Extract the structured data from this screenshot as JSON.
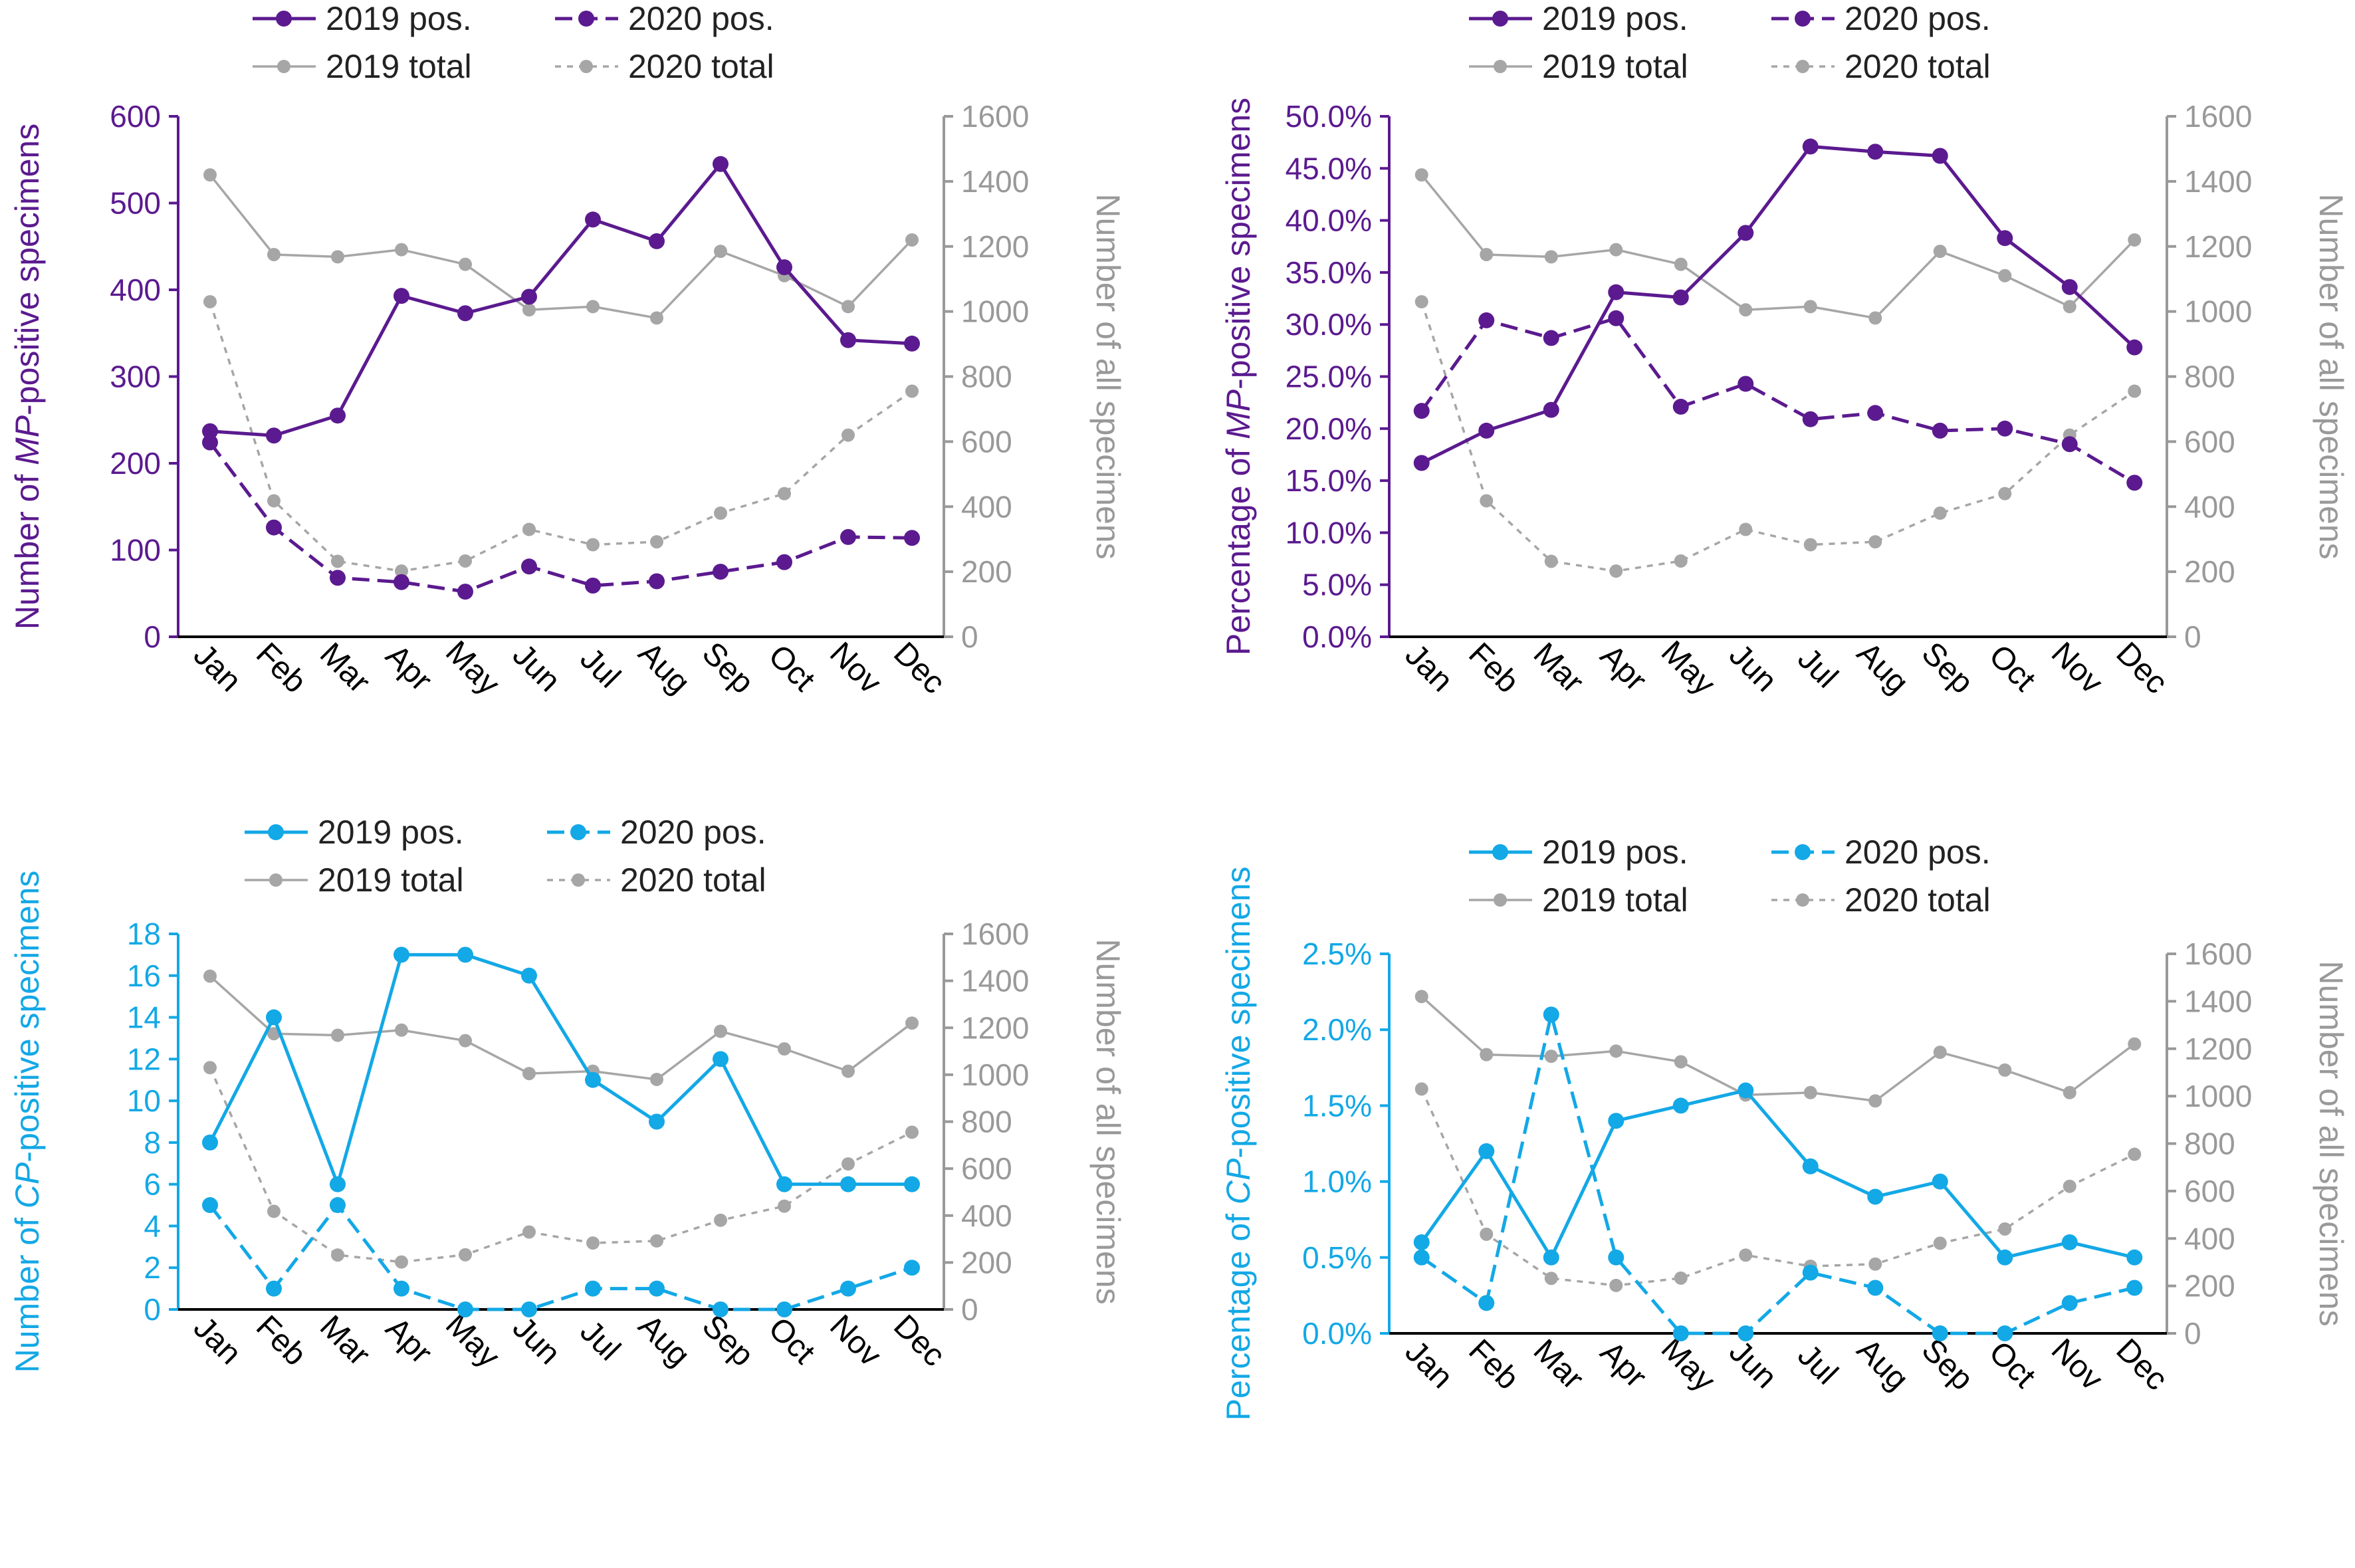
{
  "colors": {
    "mp": "#5B1A8F",
    "cp": "#13A8E6",
    "total": "#A6A6A6",
    "axis_right": "#999999"
  },
  "chart_data": [
    {
      "id": "mp-count",
      "type": "line",
      "title": "",
      "months": [
        "Jan",
        "Feb",
        "Mar",
        "Apr",
        "May",
        "Jun",
        "Jul",
        "Aug",
        "Sep",
        "Oct",
        "Nov",
        "Dec"
      ],
      "ylabel_left_parts": [
        "Number of ",
        "MP",
        "-positive specimens"
      ],
      "ylabel_right": "Number of all specimens",
      "left_ticks": [
        "0",
        "100",
        "200",
        "300",
        "400",
        "500",
        "600"
      ],
      "left_range": [
        0,
        600
      ],
      "right_ticks": [
        "0",
        "200",
        "400",
        "600",
        "800",
        "1000",
        "1200",
        "1400",
        "1600"
      ],
      "right_range": [
        0,
        1600
      ],
      "legend": [
        "2019 pos.",
        "2020 pos.",
        "2019 total",
        "2020 total"
      ],
      "series": [
        {
          "name": "2019 pos.",
          "axis": "left",
          "style": "solid",
          "color_key": "mp",
          "values": [
            237,
            232,
            255,
            393,
            373,
            392,
            481,
            456,
            545,
            426,
            342,
            338
          ]
        },
        {
          "name": "2020 pos.",
          "axis": "left",
          "style": "dashed",
          "color_key": "mp",
          "values": [
            224,
            126,
            68,
            63,
            52,
            81,
            59,
            64,
            75,
            86,
            115,
            114
          ]
        },
        {
          "name": "2019 total",
          "axis": "right",
          "style": "solid",
          "color_key": "total",
          "values": [
            1420,
            1175,
            1168,
            1190,
            1145,
            1005,
            1015,
            980,
            1185,
            1110,
            1015,
            1220
          ]
        },
        {
          "name": "2020 total",
          "axis": "right",
          "style": "dotted",
          "color_key": "total",
          "values": [
            1030,
            418,
            232,
            202,
            233,
            330,
            283,
            292,
            380,
            440,
            620,
            755
          ]
        }
      ]
    },
    {
      "id": "mp-percent",
      "type": "line",
      "title": "",
      "months": [
        "Jan",
        "Feb",
        "Mar",
        "Apr",
        "May",
        "Jun",
        "Jul",
        "Aug",
        "Sep",
        "Oct",
        "Nov",
        "Dec"
      ],
      "ylabel_left_parts": [
        "Percentage of ",
        "MP",
        "-positive specimens"
      ],
      "ylabel_right": "Number of all specimens",
      "left_ticks": [
        "0.0%",
        "5.0%",
        "10.0%",
        "15.0%",
        "20.0%",
        "25.0%",
        "30.0%",
        "35.0%",
        "40.0%",
        "45.0%",
        "50.0%"
      ],
      "left_range": [
        0,
        50
      ],
      "right_ticks": [
        "0",
        "200",
        "400",
        "600",
        "800",
        "1000",
        "1200",
        "1400",
        "1600"
      ],
      "right_range": [
        0,
        1600
      ],
      "legend": [
        "2019 pos.",
        "2020 pos.",
        "2019 total",
        "2020 total"
      ],
      "series": [
        {
          "name": "2019 pos.",
          "axis": "left",
          "style": "solid",
          "color_key": "mp",
          "values": [
            16.7,
            19.8,
            21.8,
            33.1,
            32.6,
            38.8,
            47.1,
            46.6,
            46.2,
            38.3,
            33.6,
            27.8
          ]
        },
        {
          "name": "2020 pos.",
          "axis": "left",
          "style": "dashed",
          "color_key": "mp",
          "values": [
            21.7,
            30.4,
            28.7,
            30.6,
            22.1,
            24.3,
            20.9,
            21.5,
            19.8,
            20.0,
            18.5,
            14.8
          ]
        },
        {
          "name": "2019 total",
          "axis": "right",
          "style": "solid",
          "color_key": "total",
          "values": [
            1420,
            1175,
            1168,
            1190,
            1145,
            1005,
            1015,
            980,
            1185,
            1110,
            1015,
            1220
          ]
        },
        {
          "name": "2020 total",
          "axis": "right",
          "style": "dotted",
          "color_key": "total",
          "values": [
            1030,
            418,
            232,
            202,
            233,
            330,
            283,
            292,
            380,
            440,
            620,
            755
          ]
        }
      ]
    },
    {
      "id": "cp-count",
      "type": "line",
      "title": "",
      "months": [
        "Jan",
        "Feb",
        "Mar",
        "Apr",
        "May",
        "Jun",
        "Jul",
        "Aug",
        "Sep",
        "Oct",
        "Nov",
        "Dec"
      ],
      "ylabel_left_parts": [
        "Number of ",
        "CP",
        "-positive specimens"
      ],
      "ylabel_right": "Number of all specimens",
      "left_ticks": [
        "0",
        "2",
        "4",
        "6",
        "8",
        "10",
        "12",
        "14",
        "16",
        "18"
      ],
      "left_range": [
        0,
        18
      ],
      "right_ticks": [
        "0",
        "200",
        "400",
        "600",
        "800",
        "1000",
        "1200",
        "1400",
        "1600"
      ],
      "right_range": [
        0,
        1600
      ],
      "legend": [
        "2019 pos.",
        "2020 pos.",
        "2019 total",
        "2020 total"
      ],
      "series": [
        {
          "name": "2019 pos.",
          "axis": "left",
          "style": "solid",
          "color_key": "cp",
          "values": [
            8,
            14,
            6,
            17,
            17,
            16,
            11,
            9,
            12,
            6,
            6,
            6
          ]
        },
        {
          "name": "2020 pos.",
          "axis": "left",
          "style": "dashed",
          "color_key": "cp",
          "values": [
            5,
            1,
            5,
            1,
            0,
            0,
            1,
            1,
            0,
            0,
            1,
            2
          ]
        },
        {
          "name": "2019 total",
          "axis": "right",
          "style": "solid",
          "color_key": "total",
          "values": [
            1420,
            1175,
            1168,
            1190,
            1145,
            1005,
            1015,
            980,
            1185,
            1110,
            1015,
            1220
          ]
        },
        {
          "name": "2020 total",
          "axis": "right",
          "style": "dotted",
          "color_key": "total",
          "values": [
            1030,
            418,
            232,
            202,
            233,
            330,
            283,
            292,
            380,
            440,
            620,
            755
          ]
        }
      ]
    },
    {
      "id": "cp-percent",
      "type": "line",
      "title": "",
      "months": [
        "Jan",
        "Feb",
        "Mar",
        "Apr",
        "May",
        "Jun",
        "Jul",
        "Aug",
        "Sep",
        "Oct",
        "Nov",
        "Dec"
      ],
      "ylabel_left_parts": [
        "Percentage of ",
        "CP",
        "-positive specimens"
      ],
      "ylabel_right": "Number of all specimens",
      "left_ticks": [
        "0.0%",
        "0.5%",
        "1.0%",
        "1.5%",
        "2.0%",
        "2.5%"
      ],
      "left_range": [
        0,
        2.5
      ],
      "right_ticks": [
        "0",
        "200",
        "400",
        "600",
        "800",
        "1000",
        "1200",
        "1400",
        "1600"
      ],
      "right_range": [
        0,
        1600
      ],
      "legend": [
        "2019 pos.",
        "2020 pos.",
        "2019 total",
        "2020 total"
      ],
      "series": [
        {
          "name": "2019 pos.",
          "axis": "left",
          "style": "solid",
          "color_key": "cp",
          "values": [
            0.6,
            1.2,
            0.5,
            1.4,
            1.5,
            1.6,
            1.1,
            0.9,
            1.0,
            0.5,
            0.6,
            0.5
          ]
        },
        {
          "name": "2020 pos.",
          "axis": "left",
          "style": "dashed",
          "color_key": "cp",
          "values": [
            0.5,
            0.2,
            2.1,
            0.5,
            0.0,
            0.0,
            0.4,
            0.3,
            0.0,
            0.0,
            0.2,
            0.3
          ]
        },
        {
          "name": "2019 total",
          "axis": "right",
          "style": "solid",
          "color_key": "total",
          "values": [
            1420,
            1175,
            1168,
            1190,
            1145,
            1005,
            1015,
            980,
            1185,
            1110,
            1015,
            1220
          ]
        },
        {
          "name": "2020 total",
          "axis": "right",
          "style": "dotted",
          "color_key": "total",
          "values": [
            1030,
            418,
            232,
            202,
            233,
            330,
            283,
            292,
            380,
            440,
            620,
            755
          ]
        }
      ]
    }
  ]
}
